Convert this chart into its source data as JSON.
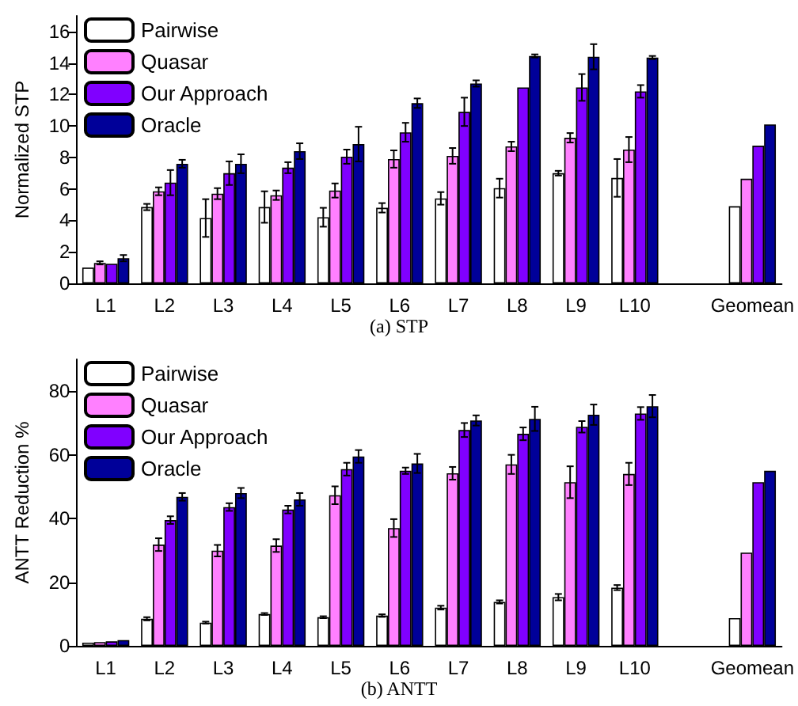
{
  "chart_data": [
    {
      "type": "bar",
      "title": "(a) STP",
      "ylabel": "Normalized STP",
      "categories": [
        "L1",
        "L2",
        "L3",
        "L4",
        "L5",
        "L6",
        "L7",
        "L8",
        "L9",
        "L10",
        null,
        "Geomean"
      ],
      "ylim": [
        0,
        17
      ],
      "yticks": [
        0,
        2,
        4,
        6,
        8,
        10,
        12,
        14,
        16
      ],
      "legend": "top left",
      "grid": false,
      "series": [
        {
          "name": "Pairwise",
          "color": "#ffffff",
          "values": [
            1.0,
            4.85,
            4.15,
            4.85,
            4.2,
            4.8,
            5.4,
            6.05,
            7.0,
            6.7,
            null,
            4.9
          ],
          "errors": [
            null,
            0.2,
            1.2,
            1.0,
            0.6,
            0.3,
            0.4,
            0.6,
            0.15,
            1.2,
            null,
            null
          ]
        },
        {
          "name": "Quasar",
          "color": "#ff80ff",
          "values": [
            1.3,
            5.85,
            5.7,
            5.6,
            5.9,
            7.9,
            8.1,
            8.7,
            9.25,
            8.5,
            null,
            6.65
          ],
          "errors": [
            0.1,
            0.25,
            0.35,
            0.3,
            0.45,
            0.55,
            0.5,
            0.3,
            0.3,
            0.8,
            null,
            null
          ]
        },
        {
          "name": "Our Approach",
          "color": "#8000ff",
          "values": [
            1.25,
            6.4,
            7.0,
            7.35,
            8.05,
            9.6,
            10.9,
            12.45,
            12.45,
            12.2,
            null,
            8.75
          ],
          "errors": [
            null,
            0.8,
            0.75,
            0.35,
            0.45,
            0.6,
            0.9,
            null,
            0.85,
            0.4,
            null,
            null
          ]
        },
        {
          "name": "Oracle",
          "color": "#000099",
          "values": [
            1.6,
            7.6,
            7.6,
            8.4,
            8.85,
            11.45,
            12.7,
            14.45,
            14.4,
            14.35,
            null,
            10.1
          ],
          "errors": [
            0.2,
            0.25,
            0.6,
            0.5,
            1.1,
            0.3,
            0.2,
            0.1,
            0.8,
            0.1,
            null,
            null
          ]
        }
      ]
    },
    {
      "type": "bar",
      "title": "(b) ANTT",
      "ylabel": "ANTT Reduction %",
      "categories": [
        "L1",
        "L2",
        "L3",
        "L4",
        "L5",
        "L6",
        "L7",
        "L8",
        "L9",
        "L10",
        null,
        "Geomean"
      ],
      "ylim": [
        0,
        90
      ],
      "yticks": [
        0,
        20,
        40,
        60,
        80
      ],
      "legend": "top left",
      "grid": false,
      "series": [
        {
          "name": "Pairwise",
          "color": "#ffffff",
          "values": [
            1,
            8.5,
            7.3,
            10,
            9,
            9.5,
            12,
            13.8,
            15.3,
            18.3,
            null,
            8.7
          ],
          "errors": [
            null,
            0.5,
            0.3,
            0.3,
            0.3,
            0.4,
            0.6,
            0.5,
            1,
            0.8,
            null,
            null
          ]
        },
        {
          "name": "Quasar",
          "color": "#ff80ff",
          "values": [
            1.2,
            31.8,
            29.9,
            31.5,
            47.3,
            37,
            54.2,
            57,
            51.4,
            54,
            null,
            29.3
          ],
          "errors": [
            null,
            2,
            1.8,
            2,
            2.8,
            2.8,
            2,
            3,
            5,
            3.5,
            null,
            null
          ]
        },
        {
          "name": "Our Approach",
          "color": "#8000ff",
          "values": [
            1.4,
            39.5,
            43.6,
            42.8,
            55.5,
            55,
            67.8,
            66.6,
            68.8,
            73,
            null,
            51.4
          ],
          "errors": [
            null,
            1.2,
            1.2,
            1.2,
            2,
            1,
            2.2,
            2,
            1.8,
            2,
            null,
            null
          ]
        },
        {
          "name": "Oracle",
          "color": "#000099",
          "values": [
            1.8,
            46.8,
            48,
            46,
            59.5,
            57.3,
            70.8,
            71.3,
            72.6,
            75.3,
            null,
            55
          ],
          "errors": [
            null,
            1.2,
            1.6,
            2,
            2,
            3,
            1.6,
            3.8,
            3.2,
            3.5,
            null,
            null
          ]
        }
      ]
    }
  ]
}
